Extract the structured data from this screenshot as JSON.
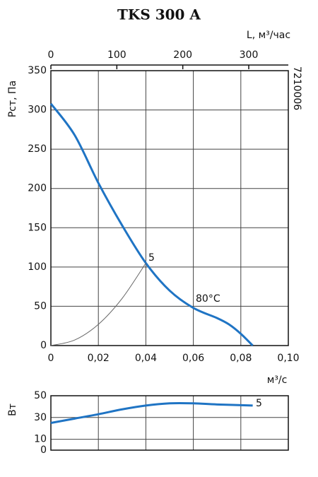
{
  "chart_data": [
    {
      "type": "line",
      "title": "TKS 300 A",
      "ylabel": "Pст, Па",
      "xlabel": "м³/с",
      "x2label": "L, м³/час",
      "code": "7210006",
      "xlim": [
        0,
        0.1
      ],
      "xticks": [
        0,
        {
          "value": 0.02,
          "label": "0,02"
        },
        {
          "value": 0.04,
          "label": "0,04"
        },
        {
          "value": 0.06,
          "label": "0,06"
        },
        {
          "value": 0.08,
          "label": "0,08"
        },
        {
          "value": 0.1,
          "label": "0,10"
        }
      ],
      "x2lim": [
        0,
        360
      ],
      "x2ticks": [
        0,
        100,
        200,
        300
      ],
      "ylim": [
        0,
        350
      ],
      "yticks": [
        0,
        50,
        100,
        150,
        200,
        250,
        300,
        350
      ],
      "grid": true,
      "series": [
        {
          "color": "#1f74c4",
          "x": [
            0,
            0.01,
            0.02,
            0.03,
            0.04,
            0.05,
            0.06,
            0.07,
            0.075,
            0.08,
            0.085
          ],
          "values": [
            308,
            268,
            207,
            153,
            105,
            70,
            48,
            35,
            27,
            15,
            0
          ]
        },
        {
          "color": "#666666",
          "x": [
            0,
            0.01,
            0.02,
            0.03,
            0.04
          ],
          "values": [
            0,
            7,
            27,
            60,
            105
          ]
        }
      ],
      "annotations": [
        "5",
        "80°C"
      ]
    },
    {
      "type": "line",
      "ylabel": "Вт",
      "xlim": [
        0,
        0.1
      ],
      "ylim": [
        0,
        50
      ],
      "yticks": [
        0,
        10,
        30,
        50
      ],
      "grid": true,
      "series": [
        {
          "color": "#1f74c4",
          "x": [
            0,
            0.01,
            0.02,
            0.03,
            0.04,
            0.05,
            0.06,
            0.07,
            0.085
          ],
          "values": [
            25,
            29,
            33,
            37.5,
            41,
            43,
            43,
            42,
            41
          ]
        }
      ],
      "annotations": [
        "5"
      ]
    }
  ]
}
